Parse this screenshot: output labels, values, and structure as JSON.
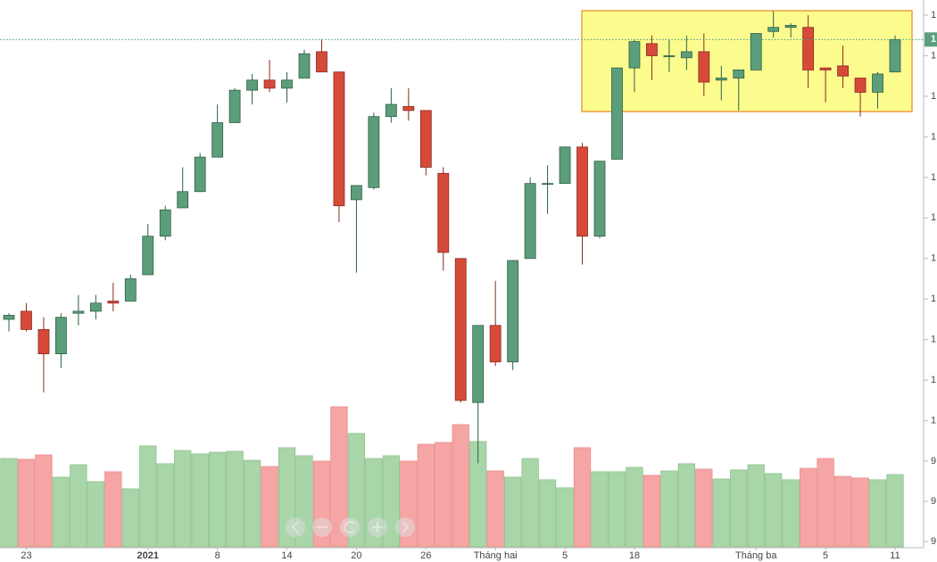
{
  "chart_data": {
    "type": "candlestick",
    "categories": [
      null,
      "23",
      null,
      null,
      null,
      null,
      null,
      null,
      "2021",
      null,
      null,
      null,
      "8",
      null,
      null,
      null,
      "14",
      null,
      null,
      null,
      "20",
      null,
      null,
      null,
      "26",
      null,
      null,
      null,
      "Tháng hai",
      null,
      null,
      null,
      "5",
      null,
      null,
      null,
      "18",
      null,
      null,
      null,
      null,
      null,
      null,
      "Tháng ba",
      null,
      null,
      null,
      "5",
      null,
      null,
      null,
      "11"
    ],
    "open": [
      1030,
      1034,
      1025,
      1013,
      1033,
      1034,
      1039,
      1039,
      1052,
      1071,
      1085,
      1093,
      1110,
      1127,
      1143,
      1148,
      1144,
      1149,
      1162,
      1152,
      1089,
      1095,
      1130,
      1135,
      1133,
      1102,
      1060,
      989,
      1027,
      1009,
      1060,
      1097,
      1097,
      1115,
      1071,
      1109,
      1154,
      1166,
      1160,
      1159,
      1162,
      1148,
      1149,
      1153,
      1172,
      1174,
      1174,
      1154,
      1155,
      1149,
      1142,
      1152
    ],
    "high": [
      1033,
      1038,
      1031,
      1033,
      1042,
      1042,
      1048,
      1052,
      1077,
      1086,
      1105,
      1112,
      1136,
      1144,
      1151,
      1158,
      1152,
      1163,
      1168,
      1152,
      1096,
      1132,
      1144,
      1144,
      1133,
      1105,
      1060,
      1027,
      1049,
      1059,
      1100,
      1106,
      1115,
      1117,
      1108,
      1154,
      1168,
      1170,
      1168,
      1170,
      1171,
      1155,
      1153,
      1171,
      1182,
      1176,
      1180,
      1154,
      1165,
      1149,
      1152,
      1170
    ],
    "low": [
      1024,
      1024,
      994,
      1006,
      1027,
      1030,
      1034,
      1039,
      1052,
      1069,
      1085,
      1093,
      1110,
      1127,
      1136,
      1142,
      1137,
      1149,
      1152,
      1078,
      1053,
      1094,
      1127,
      1128,
      1101,
      1054,
      989,
      959,
      1007,
      1005,
      1060,
      1082,
      1097,
      1057,
      1070,
      1109,
      1142,
      1148,
      1152,
      1153,
      1140,
      1138,
      1133,
      1153,
      1169,
      1169,
      1144,
      1137,
      1144,
      1130,
      1134,
      1152
    ],
    "close": [
      1032,
      1025,
      1013,
      1031,
      1034,
      1038,
      1038,
      1050,
      1071,
      1084,
      1093,
      1110,
      1127,
      1143,
      1148,
      1144,
      1148,
      1161,
      1152,
      1086,
      1096,
      1130,
      1136,
      1133,
      1105,
      1063,
      990,
      1027,
      1009,
      1059,
      1097,
      1097,
      1115,
      1071,
      1108,
      1154,
      1167,
      1160,
      1160,
      1162,
      1147,
      1149,
      1153,
      1171,
      1174,
      1175,
      1153,
      1153,
      1150,
      1142,
      1151,
      1168
    ],
    "volume": [
      9.413,
      9.409,
      9.431,
      9.32,
      9.382,
      9.298,
      9.347,
      9.262,
      9.476,
      9.387,
      9.453,
      9.436,
      9.444,
      9.449,
      9.404,
      9.373,
      9.467,
      9.427,
      9.4,
      9.671,
      9.538,
      9.413,
      9.427,
      9.4,
      9.484,
      9.493,
      9.582,
      9.498,
      9.351,
      9.32,
      9.413,
      9.307,
      9.267,
      9.467,
      9.347,
      9.347,
      9.369,
      9.329,
      9.351,
      9.387,
      9.36,
      9.311,
      9.356,
      9.382,
      9.338,
      9.307,
      9.364,
      9.413,
      9.324,
      9.316,
      9.307,
      9.333
    ],
    "ylim": [
      917.8,
      1187.5
    ],
    "yticks": [
      {
        "value": 1180,
        "label": "1"
      },
      {
        "value": 1160,
        "label": "1"
      },
      {
        "value": 1140,
        "label": "1"
      },
      {
        "value": 1120,
        "label": "1"
      },
      {
        "value": 1100,
        "label": "1"
      },
      {
        "value": 1080,
        "label": "1"
      },
      {
        "value": 1060,
        "label": "1"
      },
      {
        "value": 1040,
        "label": "1"
      },
      {
        "value": 1020,
        "label": "1"
      },
      {
        "value": 1000,
        "label": "1"
      },
      {
        "value": 980,
        "label": "1"
      }
    ],
    "y2lim": [
      8.973,
      11.698
    ],
    "y2ticks": [
      {
        "value": 9.4,
        "label": "9"
      },
      {
        "value": 9.2,
        "label": "9"
      },
      {
        "value": 9.0,
        "label": "9"
      }
    ],
    "last_price": {
      "value": 1168,
      "label": "1"
    },
    "up_color": "#5c9e7c",
    "down_color": "#d64a3a",
    "volume_up_color": "#a9d6a9",
    "volume_down_color": "#f6a5a5"
  }
}
